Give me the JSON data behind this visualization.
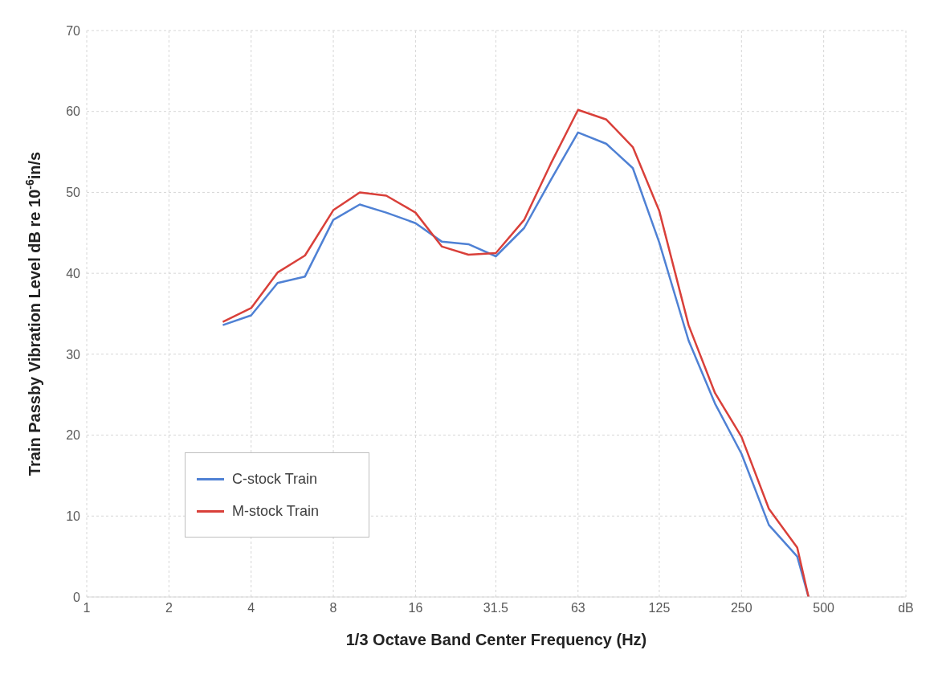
{
  "chart_data": {
    "type": "line",
    "xlabel": "1/3 Octave Band Center Frequency (Hz)",
    "ylabel": "Train Passby Vibration Level dB re 10$^{-6}$in/s",
    "x": [
      3.15,
      4,
      5,
      6.3,
      8,
      10,
      12.5,
      16,
      20,
      25,
      31.5,
      40,
      50,
      63,
      80,
      100,
      125,
      160,
      200,
      250,
      315,
      400,
      440
    ],
    "series": [
      {
        "name": "C-stock Train",
        "color": "#4f81d4",
        "values": [
          33.6,
          34.8,
          38.8,
          39.6,
          46.6,
          48.5,
          47.5,
          46.2,
          43.9,
          43.6,
          42.1,
          45.6,
          51.5,
          57.4,
          56,
          53,
          43.8,
          31.7,
          23.9,
          17.7,
          8.9,
          5,
          0
        ]
      },
      {
        "name": "M-stock Train",
        "color": "#d9403a",
        "values": [
          34,
          35.7,
          40.1,
          42.2,
          47.8,
          50,
          49.6,
          47.5,
          43.3,
          42.3,
          42.5,
          46.6,
          53.5,
          60.2,
          59,
          55.6,
          47.7,
          33.6,
          25.2,
          19.8,
          10.9,
          6.1,
          0
        ]
      }
    ],
    "log": "x",
    "xlim": [
      1,
      1000
    ],
    "xticks": [
      1,
      2,
      4,
      8,
      16,
      31.5,
      63,
      125,
      250,
      500,
      {
        "value": 1000,
        "label": "dB"
      }
    ],
    "ylim": [
      0,
      70
    ],
    "yticks": [
      0,
      10,
      20,
      30,
      40,
      50,
      60,
      70
    ],
    "grid": true,
    "legend": "bottom left"
  }
}
